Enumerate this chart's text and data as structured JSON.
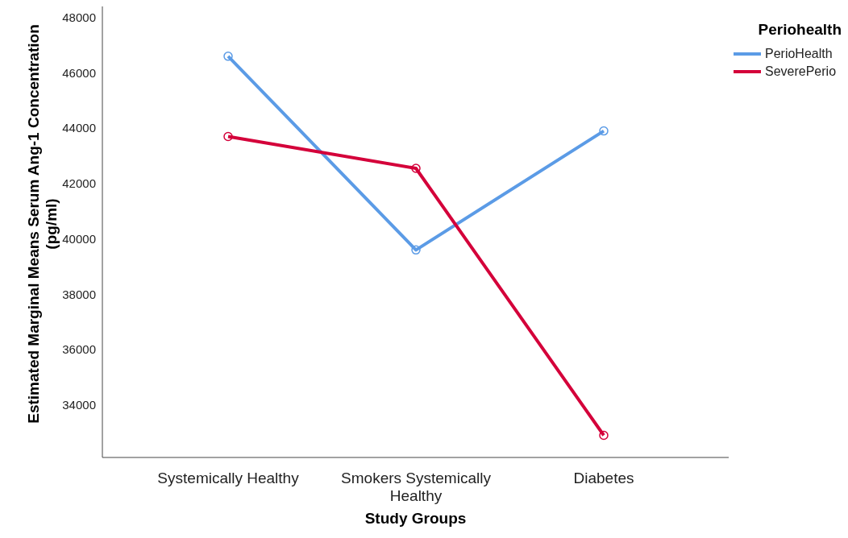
{
  "chart_data": {
    "type": "line",
    "xlabel": "Study Groups",
    "ylabel": "Estimated Marginal Means Serum Ang-1 Concentration (pg/ml)",
    "legend_title": "Periohealth",
    "categories": [
      "Systemically Healthy",
      "Smokers Systemically Healthy",
      "Diabetes"
    ],
    "series": [
      {
        "name": "PerioHealth",
        "color": "#5b9be6",
        "values": [
          46600,
          39600,
          43900
        ]
      },
      {
        "name": "SeverePerio",
        "color": "#d4003a",
        "values": [
          43700,
          42550,
          32900
        ]
      }
    ],
    "ylim": [
      32100,
      48400
    ],
    "yticks": [
      34000,
      36000,
      38000,
      40000,
      42000,
      44000,
      46000,
      48000
    ],
    "grid": false,
    "legend": "top right",
    "marker": "circle",
    "line_style": "solid"
  }
}
